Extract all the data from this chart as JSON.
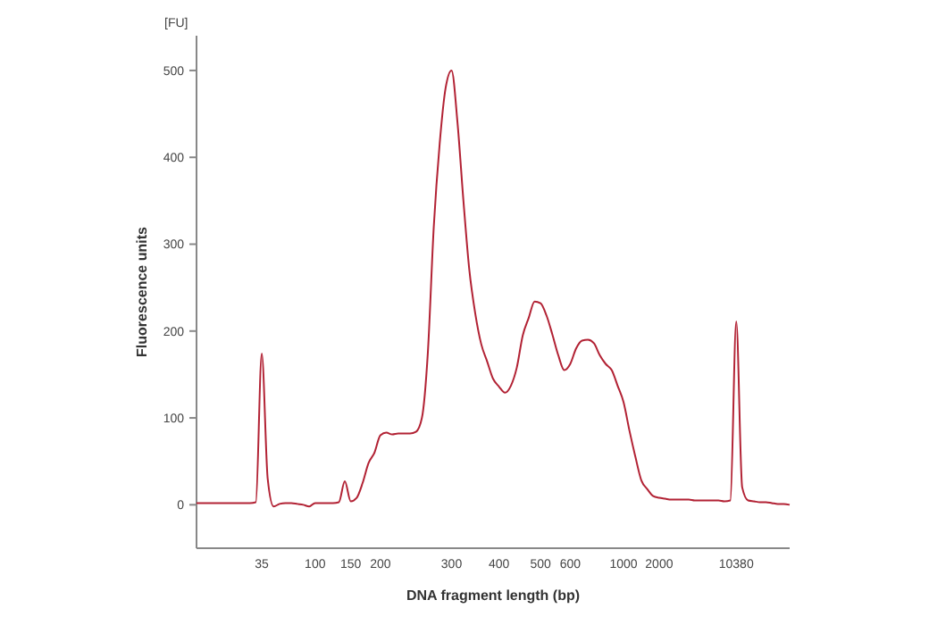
{
  "chart_data": {
    "type": "line",
    "xlabel": "DNA fragment length (bp)",
    "ylabel": "Fluorescence units",
    "annotations": [
      "[FU]"
    ],
    "ylim": [
      -50,
      540
    ],
    "yticks": [
      0,
      100,
      200,
      300,
      400,
      500
    ],
    "grid": false,
    "categories": [
      null,
      null,
      null,
      null,
      null,
      null,
      null,
      null,
      null,
      null,
      null,
      "35",
      null,
      null,
      null,
      null,
      null,
      null,
      null,
      null,
      "100",
      null,
      null,
      null,
      null,
      null,
      "150",
      null,
      null,
      null,
      null,
      "200",
      null,
      null,
      null,
      null,
      null,
      null,
      null,
      null,
      null,
      null,
      null,
      "300",
      null,
      null,
      null,
      null,
      null,
      null,
      null,
      "400",
      null,
      null,
      null,
      null,
      null,
      null,
      "500",
      null,
      null,
      null,
      null,
      "600",
      null,
      null,
      null,
      null,
      null,
      null,
      null,
      null,
      "1000",
      null,
      null,
      null,
      null,
      null,
      "2000",
      null,
      null,
      null,
      null,
      null,
      null,
      null,
      null,
      null,
      null,
      null,
      null,
      "10380",
      null,
      null,
      null,
      null,
      null,
      null,
      null,
      null,
      null
    ],
    "series": [
      {
        "color": "#b22234",
        "values": [
          2,
          2,
          2,
          2,
          2,
          2,
          2,
          2,
          2,
          2,
          3,
          174,
          30,
          -2,
          1,
          2,
          2,
          1,
          0,
          -2,
          2,
          2,
          2,
          2,
          3,
          27,
          4,
          8,
          25,
          48,
          60,
          80,
          83,
          81,
          82,
          82,
          82,
          84,
          100,
          175,
          320,
          416,
          480,
          500,
          440,
          350,
          270,
          220,
          185,
          165,
          145,
          136,
          129,
          137,
          158,
          195,
          215,
          234,
          232,
          218,
          196,
          172,
          155,
          162,
          180,
          189,
          190,
          186,
          172,
          162,
          155,
          137,
          118,
          85,
          55,
          28,
          18,
          10,
          8,
          7,
          6,
          6,
          6,
          6,
          5,
          5,
          5,
          5,
          5,
          4,
          5,
          211,
          20,
          5,
          4,
          3,
          3,
          2,
          1,
          1,
          0
        ]
      }
    ]
  }
}
